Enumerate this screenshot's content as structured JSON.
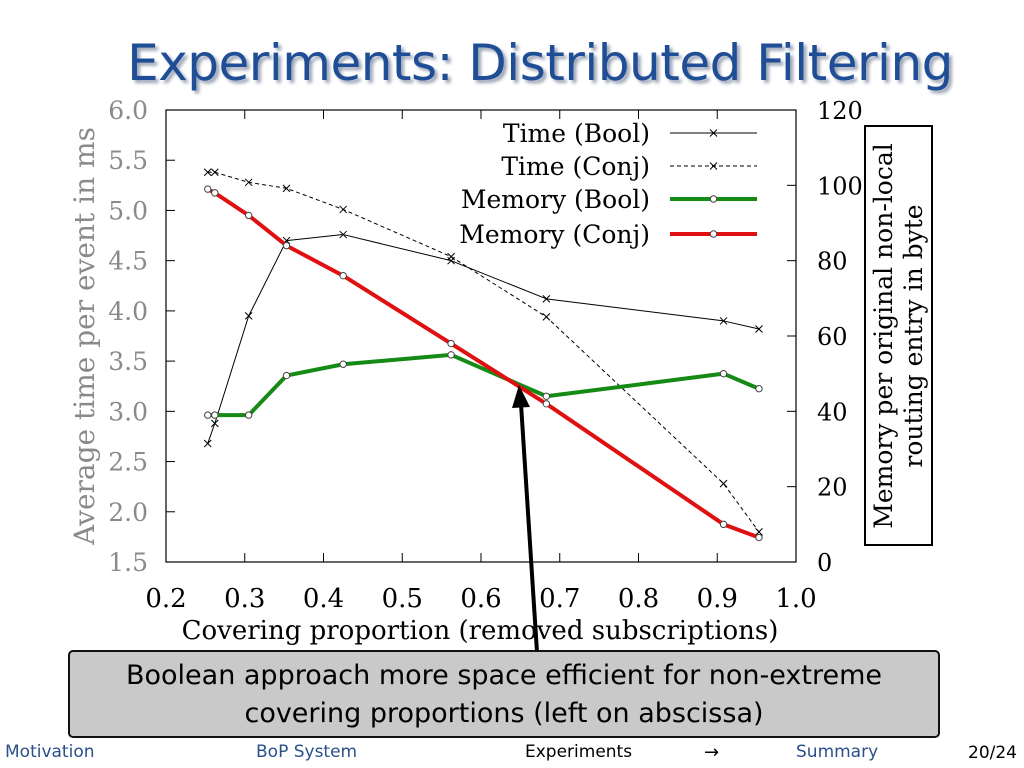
{
  "slide": {
    "title": "Experiments: Distributed Filtering"
  },
  "chart_data": {
    "type": "line",
    "xlabel": "Covering proportion (removed subscriptions)",
    "ylabel": "Average time per event in ms",
    "y2label_line1": "Memory per original non-local",
    "y2label_line2": "routing entry in byte",
    "xlim": [
      0.2,
      1.0
    ],
    "ylim": [
      1.5,
      6.0
    ],
    "y2lim": [
      0,
      120
    ],
    "xticks": [
      "0.2",
      "0.3",
      "0.4",
      "0.5",
      "0.6",
      "0.7",
      "0.8",
      "0.9",
      "1.0"
    ],
    "yticks": [
      "6.0",
      "5.5",
      "5.0",
      "4.5",
      "4.0",
      "3.5",
      "3.0",
      "2.5",
      "2.0",
      "1.5"
    ],
    "y2ticks": [
      "120",
      "100",
      "80",
      "60",
      "40",
      "20",
      "0"
    ],
    "legend_position": "top-right",
    "series": [
      {
        "name": "Time (Bool)",
        "axis": "left",
        "color": "#000000",
        "style": "solid",
        "marker": "x",
        "points": [
          [
            0.253,
            2.68
          ],
          [
            0.262,
            2.88
          ],
          [
            0.305,
            3.95
          ],
          [
            0.353,
            4.7
          ],
          [
            0.425,
            4.76
          ],
          [
            0.562,
            4.5
          ],
          [
            0.683,
            4.12
          ],
          [
            0.908,
            3.9
          ],
          [
            0.953,
            3.82
          ]
        ]
      },
      {
        "name": "Time (Conj)",
        "axis": "left",
        "color": "#000000",
        "style": "dashed",
        "marker": "x",
        "points": [
          [
            0.253,
            5.38
          ],
          [
            0.262,
            5.38
          ],
          [
            0.305,
            5.28
          ],
          [
            0.353,
            5.22
          ],
          [
            0.425,
            5.01
          ],
          [
            0.562,
            4.54
          ],
          [
            0.683,
            3.94
          ],
          [
            0.908,
            2.28
          ],
          [
            0.953,
            1.8
          ]
        ]
      },
      {
        "name": "Memory (Bool)",
        "axis": "right",
        "color": "#158a15",
        "style": "thick",
        "marker": "o",
        "points": [
          [
            0.253,
            39
          ],
          [
            0.262,
            39
          ],
          [
            0.305,
            39
          ],
          [
            0.353,
            49.5
          ],
          [
            0.425,
            52.5
          ],
          [
            0.562,
            55
          ],
          [
            0.683,
            44
          ],
          [
            0.908,
            50
          ],
          [
            0.953,
            46
          ]
        ]
      },
      {
        "name": "Memory (Conj)",
        "axis": "right",
        "color": "#e01010",
        "style": "thick",
        "marker": "o",
        "points": [
          [
            0.253,
            99
          ],
          [
            0.262,
            98
          ],
          [
            0.305,
            92
          ],
          [
            0.353,
            84
          ],
          [
            0.425,
            76
          ],
          [
            0.562,
            58
          ],
          [
            0.683,
            42
          ],
          [
            0.908,
            10
          ],
          [
            0.953,
            6.5
          ]
        ]
      }
    ]
  },
  "callout": {
    "line1": "Boolean approach more space efficient for non-extreme",
    "line2": "covering proportions (left on abscissa)"
  },
  "nav": {
    "motivation": "Motivation",
    "bop_system": "BoP System",
    "experiments": "Experiments",
    "summary": "Summary",
    "arrow": "→",
    "page": "20/24"
  }
}
